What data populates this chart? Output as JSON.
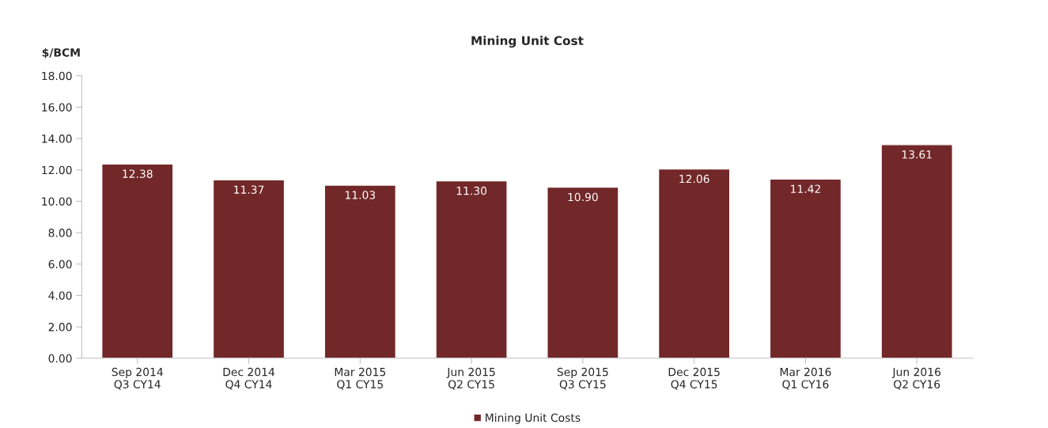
{
  "chart_data": {
    "type": "bar",
    "title": "Mining Unit Cost",
    "ylabel": "$/BCM",
    "categories": [
      "Sep 2014\nQ3 CY14",
      "Dec 2014\nQ4 CY14",
      "Mar 2015\nQ1 CY15",
      "Jun 2015\nQ2 CY15",
      "Sep 2015\nQ3 CY15",
      "Dec 2015\nQ4 CY15",
      "Mar 2016\nQ1 CY16",
      "Jun 2016\nQ2 CY16"
    ],
    "series": [
      {
        "name": "Mining Unit Costs",
        "color": "#722828",
        "values": [
          12.38,
          11.37,
          11.03,
          11.3,
          10.9,
          12.06,
          11.42,
          13.61
        ],
        "value_labels": [
          "12.38",
          "11.37",
          "11.03",
          "11.30",
          "10.90",
          "12.06",
          "11.42",
          "13.61"
        ]
      }
    ],
    "ylim": [
      0,
      18
    ],
    "yticks": [
      {
        "value": 0,
        "label": "0.00"
      },
      {
        "value": 2,
        "label": "2.00"
      },
      {
        "value": 4,
        "label": "4.00"
      },
      {
        "value": 6,
        "label": "6.00"
      },
      {
        "value": 8,
        "label": "8.00"
      },
      {
        "value": 10,
        "label": "10.00"
      },
      {
        "value": 12,
        "label": "12.00"
      },
      {
        "value": 14,
        "label": "14.00"
      },
      {
        "value": 16,
        "label": "16.00"
      },
      {
        "value": 18,
        "label": "18.00"
      }
    ],
    "grid": false,
    "legend": "bottom"
  }
}
